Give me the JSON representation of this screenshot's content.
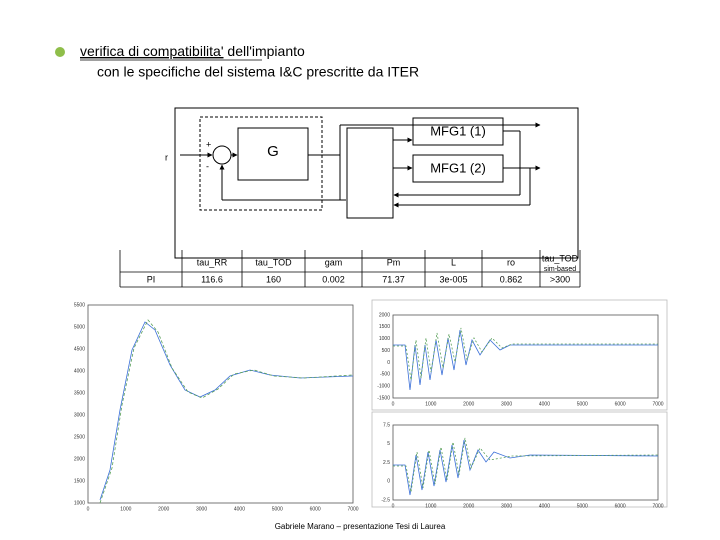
{
  "bullet": {
    "line1": "verifica di compatibilita'",
    "line1_rest": " dell'impianto",
    "line2": "con le specifiche del sistema I&C prescritte da ITER"
  },
  "diagram": {
    "input": "r",
    "plus": "+",
    "minus": "-",
    "plant": "G",
    "block1": "MFG1 (1)",
    "block2": "MFG1 (2)"
  },
  "table": {
    "header": [
      "tau_RR",
      "tau_TOD",
      "gam",
      "Pm",
      "L",
      "ro",
      "tau_TOD"
    ],
    "header_sub": "sim-based",
    "rows": [
      [
        "PI",
        "116.6",
        "160",
        "0.002",
        "71.37",
        "3e-005",
        "0.862",
        ">300"
      ]
    ]
  },
  "plots": [
    {
      "yticks": [
        "5500",
        "5000",
        "4500",
        "4000",
        "3500",
        "3000",
        "2500",
        "2000",
        "1500",
        "1000"
      ],
      "xticks": [
        "0",
        "1000",
        "2000",
        "3000",
        "4000",
        "5000",
        "6000",
        "7000"
      ]
    },
    {
      "yticks": [
        "2000",
        "1500",
        "1000",
        "500",
        "0",
        "-500",
        "-1000",
        "-1500"
      ],
      "xticks": [
        "0",
        "1000",
        "2000",
        "3000",
        "4000",
        "5000",
        "6000",
        "7000"
      ]
    },
    {
      "yticks": [
        "7.5",
        "5",
        "2.5",
        "0",
        "-2.5"
      ],
      "xticks": [
        "0",
        "1000",
        "2000",
        "3000",
        "4000",
        "5000",
        "6000",
        "7000"
      ]
    }
  ],
  "footer": "Gabriele Marano – presentazione Tesi di Laurea"
}
